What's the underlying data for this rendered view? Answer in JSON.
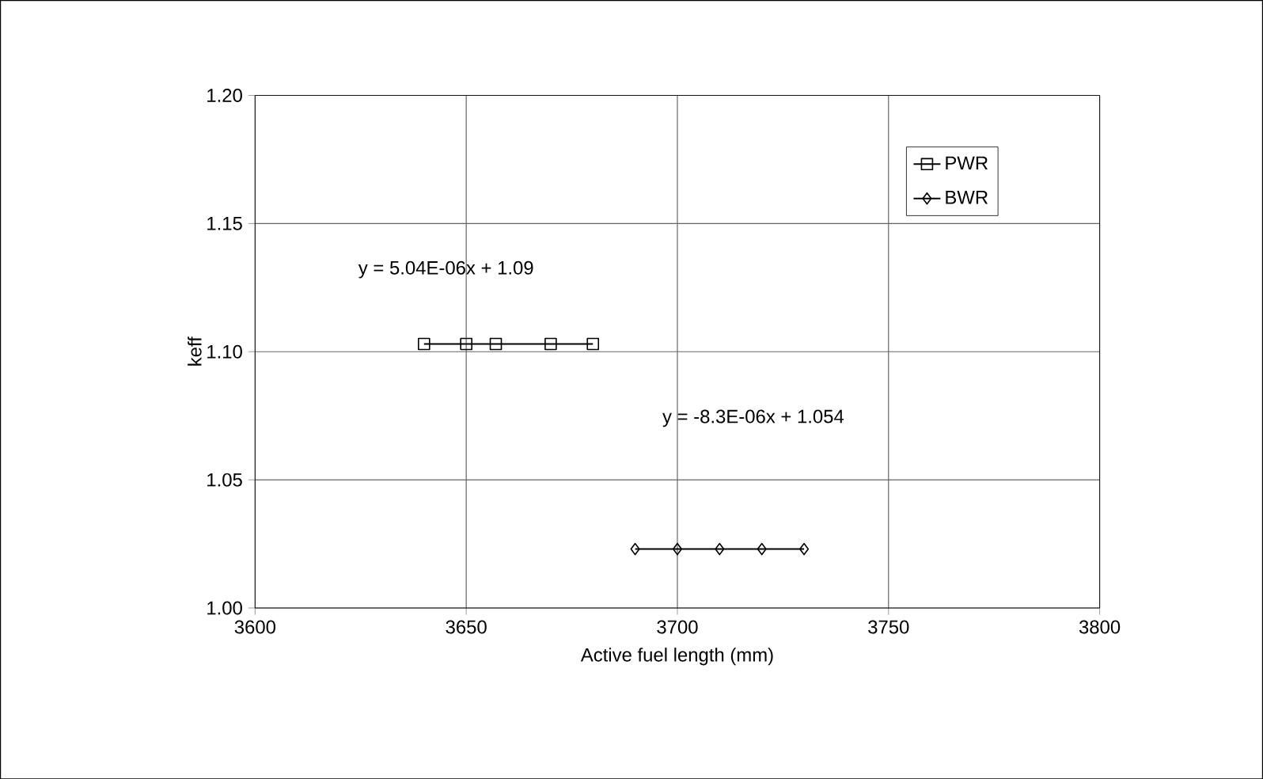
{
  "chart_data": {
    "type": "line",
    "xlabel": "Active fuel length (mm)",
    "ylabel": "keff",
    "xlim": [
      3600,
      3800
    ],
    "xticks": [
      3600,
      3650,
      3700,
      3750,
      3800
    ],
    "ylim": [
      1.0,
      1.2
    ],
    "yticks": [
      {
        "value": 1.0,
        "label": "1.00"
      },
      {
        "value": 1.05,
        "label": "1.05"
      },
      {
        "value": 1.1,
        "label": "1.10"
      },
      {
        "value": 1.15,
        "label": "1.15"
      },
      {
        "value": 1.2,
        "label": "1.20"
      }
    ],
    "series": [
      {
        "name": "PWR",
        "color": "#000000",
        "marker": "square",
        "x": [
          3640,
          3650,
          3657,
          3670,
          3680
        ],
        "values": [
          1.103,
          1.103,
          1.103,
          1.103,
          1.103
        ]
      },
      {
        "name": "BWR",
        "color": "#000000",
        "marker": "diamond",
        "x": [
          3690,
          3700,
          3710,
          3720,
          3730
        ],
        "values": [
          1.023,
          1.023,
          1.023,
          1.023,
          1.023
        ]
      }
    ],
    "annotations": [
      "y = 5.04E-06x + 1.09",
      "y = -8.3E-06x + 1.054"
    ],
    "grid": true,
    "legend": "top right",
    "line_style": "solid"
  }
}
